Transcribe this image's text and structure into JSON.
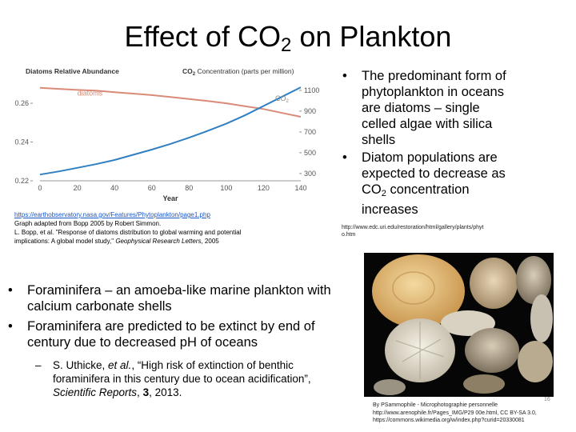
{
  "slide": {
    "title_main": "Effect of CO",
    "title_sub": "2",
    "title_rest": " on Plankton",
    "page_number": "16"
  },
  "chart_data": {
    "type": "line",
    "title_left": "Diatoms Relative Abundance",
    "title_right_prefix": "CO",
    "title_right_sub": "2",
    "title_right_rest": " Concentration (parts per million)",
    "xlabel": "Year",
    "x_ticks": [
      "0",
      "20",
      "40",
      "60",
      "80",
      "100",
      "120",
      "140"
    ],
    "xlim": [
      0,
      140
    ],
    "y_left_ticks": [
      "0.22",
      "0.24",
      "0.26"
    ],
    "y_left_lim": [
      0.22,
      0.272
    ],
    "y_right_ticks": [
      "300",
      "500",
      "700",
      "900",
      "1100"
    ],
    "y_right_lim": [
      230,
      1200
    ],
    "grid": false,
    "series": [
      {
        "name": "diatoms",
        "color": "#d98b78",
        "axis": "left",
        "x": [
          0,
          10,
          20,
          30,
          40,
          50,
          60,
          70,
          80,
          90,
          100,
          110,
          120,
          130,
          140
        ],
        "y": [
          0.268,
          0.2674,
          0.2669,
          0.2665,
          0.2657,
          0.265,
          0.2642,
          0.2632,
          0.2622,
          0.2612,
          0.26,
          0.2585,
          0.257,
          0.255,
          0.253
        ]
      },
      {
        "name": "CO",
        "name_sub": "2",
        "color": "#2f7fc1",
        "axis": "right",
        "x": [
          0,
          10,
          20,
          30,
          40,
          50,
          60,
          70,
          80,
          90,
          100,
          110,
          120,
          130,
          140
        ],
        "y": [
          290,
          320,
          355,
          390,
          430,
          480,
          530,
          585,
          645,
          710,
          780,
          860,
          950,
          1040,
          1130
        ]
      }
    ]
  },
  "chart_caption": {
    "link": "https://earthobservatory.nasa.gov/Features/Phytoplankton/page1.php",
    "line1": "Graph adapted from Bopp 2005 by Robert Simmon.",
    "line2": "L. Bopp, et al. \"Response of diatoms distribution to global warming and potential",
    "line3_start": "implications: A global model study,\" ",
    "line3_italic": "Geophysical Research Letters",
    "line3_end": ", 2005"
  },
  "right_bullets": {
    "b1_lines": [
      "The predominant form of",
      "phytoplankton in oceans",
      "are diatoms – single",
      "celled algae with silica",
      "shells"
    ],
    "b2_lines": [
      "Diatom populations are",
      "expected to decrease as"
    ],
    "b2_co2_main": "CO",
    "b2_co2_sub": "2",
    "b2_co2_rest": " concentration",
    "b2_last": "increases"
  },
  "right_source": {
    "line1": "http://www.edc.uri.edu/restoration/html/gallery/plants/phyt",
    "line2": "o.htm"
  },
  "main_bullets": {
    "b1_lines": [
      "Foraminifera – an amoeba-like marine plankton with",
      "calcium carbonate shells"
    ],
    "b2_lines": [
      "Foraminifera are predicted to be extinct by end of",
      "century due to decreased pH of oceans"
    ]
  },
  "citation": {
    "dash": "–",
    "l1_start": "S. Uthicke, ",
    "l1_italic": "et al.",
    "l1_end": ", “High risk of extinction of benthic",
    "l2": "foraminifera in this century due to ocean acidification”,",
    "l3_italic": "Scientific Reports",
    "l3_mid": ", ",
    "l3_bold": "3",
    "l3_end": ", 2013."
  },
  "photo_credit": {
    "line1": "By PSammophile - Microphotographie personnelle",
    "line2": "http://www.arenophile.fr/Pages_IMG/P29 00e.html, CC BY-SA 3.0,",
    "line3": "https://commons.wikimedia.org/w/index.php?curid=20330081"
  },
  "colors": {
    "co2_line": "#2f7fc1",
    "diatom_line": "#d98b78",
    "link": "#1a56c8"
  }
}
